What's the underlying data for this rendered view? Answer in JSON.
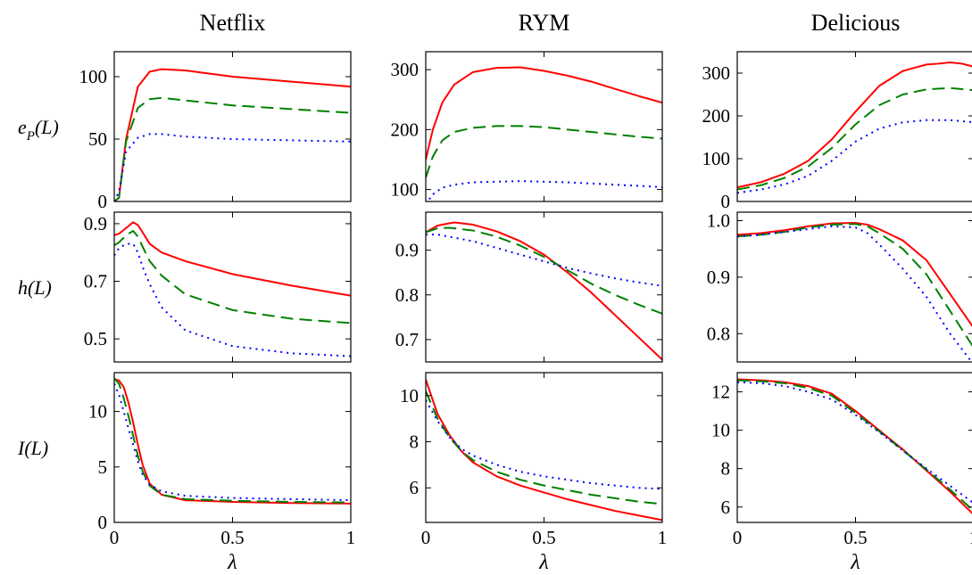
{
  "figure": {
    "columns": [
      "Netflix",
      "RYM",
      "Delicious"
    ],
    "row_labels": [
      {
        "base": "e",
        "sub": "P",
        "rest": "(L)"
      },
      {
        "base": "h(L)",
        "sub": "",
        "rest": ""
      },
      {
        "base": "I(L)",
        "sub": "",
        "rest": ""
      }
    ],
    "xlabel": "λ",
    "colors": {
      "red": "#ff0000",
      "green": "#008000",
      "blue": "#0000ff"
    }
  },
  "chart_data": [
    {
      "type": "line",
      "dataset": "Netflix",
      "metric": "eP(L)",
      "xlim": [
        0,
        1
      ],
      "ylim": [
        0,
        120
      ],
      "yticks": [
        0,
        50,
        100
      ],
      "ytick_labels": [
        "0",
        "50",
        "100"
      ],
      "xticks": [
        0,
        0.5,
        1
      ],
      "xtick_labels": [
        "",
        "",
        ""
      ],
      "series": [
        {
          "style": "solid",
          "color": "#ff0000",
          "x": [
            0,
            0.02,
            0.05,
            0.1,
            0.15,
            0.2,
            0.3,
            0.5,
            0.75,
            1
          ],
          "y": [
            0,
            3,
            50,
            92,
            104,
            106,
            105,
            100,
            96,
            92
          ]
        },
        {
          "style": "dashed",
          "color": "#008000",
          "x": [
            0,
            0.02,
            0.05,
            0.1,
            0.15,
            0.2,
            0.3,
            0.5,
            0.75,
            1
          ],
          "y": [
            0,
            3,
            48,
            75,
            82,
            83,
            81,
            77,
            74,
            71
          ]
        },
        {
          "style": "dotted",
          "color": "#0000ff",
          "x": [
            0,
            0.02,
            0.05,
            0.1,
            0.15,
            0.2,
            0.3,
            0.5,
            0.75,
            1
          ],
          "y": [
            0,
            8,
            40,
            51,
            54,
            54,
            52,
            50,
            49,
            48
          ]
        }
      ]
    },
    {
      "type": "line",
      "dataset": "RYM",
      "metric": "eP(L)",
      "xlim": [
        0,
        1
      ],
      "ylim": [
        80,
        330
      ],
      "yticks": [
        100,
        200,
        300
      ],
      "ytick_labels": [
        "100",
        "200",
        "300"
      ],
      "xticks": [
        0,
        0.5,
        1
      ],
      "xtick_labels": [
        "",
        "",
        ""
      ],
      "series": [
        {
          "style": "solid",
          "color": "#ff0000",
          "x": [
            0,
            0.03,
            0.07,
            0.12,
            0.2,
            0.3,
            0.4,
            0.5,
            0.6,
            0.7,
            0.8,
            0.9,
            1
          ],
          "y": [
            150,
            200,
            245,
            275,
            296,
            303,
            304,
            298,
            290,
            280,
            268,
            256,
            245
          ]
        },
        {
          "style": "dashed",
          "color": "#008000",
          "x": [
            0,
            0.03,
            0.07,
            0.12,
            0.2,
            0.3,
            0.4,
            0.5,
            0.6,
            0.7,
            0.8,
            0.9,
            1
          ],
          "y": [
            120,
            155,
            182,
            196,
            203,
            206,
            206,
            204,
            200,
            196,
            192,
            188,
            185
          ]
        },
        {
          "style": "dotted",
          "color": "#0000ff",
          "x": [
            0,
            0.03,
            0.07,
            0.12,
            0.2,
            0.3,
            0.4,
            0.5,
            0.6,
            0.7,
            0.8,
            0.9,
            1
          ],
          "y": [
            75,
            92,
            103,
            108,
            112,
            113,
            114,
            113,
            112,
            110,
            108,
            106,
            104
          ]
        }
      ]
    },
    {
      "type": "line",
      "dataset": "Delicious",
      "metric": "eP(L)",
      "xlim": [
        0,
        1
      ],
      "ylim": [
        0,
        350
      ],
      "yticks": [
        0,
        100,
        200,
        300
      ],
      "ytick_labels": [
        "0",
        "100",
        "200",
        "300"
      ],
      "xticks": [
        0,
        0.5,
        1
      ],
      "xtick_labels": [
        "",
        "",
        ""
      ],
      "series": [
        {
          "style": "solid",
          "color": "#ff0000",
          "x": [
            0,
            0.1,
            0.2,
            0.3,
            0.4,
            0.5,
            0.6,
            0.7,
            0.8,
            0.85,
            0.9,
            0.95,
            1
          ],
          "y": [
            33,
            45,
            65,
            95,
            145,
            210,
            270,
            305,
            320,
            322,
            325,
            322,
            315
          ]
        },
        {
          "style": "dashed",
          "color": "#008000",
          "x": [
            0,
            0.1,
            0.2,
            0.3,
            0.4,
            0.5,
            0.6,
            0.7,
            0.8,
            0.9,
            1
          ],
          "y": [
            28,
            38,
            55,
            82,
            125,
            180,
            225,
            250,
            262,
            265,
            260
          ]
        },
        {
          "style": "dotted",
          "color": "#0000ff",
          "x": [
            0,
            0.1,
            0.2,
            0.3,
            0.4,
            0.5,
            0.6,
            0.7,
            0.8,
            0.9,
            1
          ],
          "y": [
            20,
            28,
            40,
            60,
            95,
            140,
            170,
            185,
            190,
            190,
            185
          ]
        }
      ]
    },
    {
      "type": "line",
      "dataset": "Netflix",
      "metric": "h(L)",
      "xlim": [
        0,
        1
      ],
      "ylim": [
        0.42,
        0.94
      ],
      "yticks": [
        0.5,
        0.7,
        0.9
      ],
      "ytick_labels": [
        "0.5",
        "0.7",
        "0.9"
      ],
      "xticks": [
        0,
        0.5,
        1
      ],
      "xtick_labels": [
        "",
        "",
        ""
      ],
      "series": [
        {
          "style": "solid",
          "color": "#ff0000",
          "x": [
            0,
            0.02,
            0.05,
            0.08,
            0.1,
            0.12,
            0.15,
            0.2,
            0.3,
            0.5,
            0.75,
            1
          ],
          "y": [
            0.86,
            0.865,
            0.885,
            0.905,
            0.895,
            0.87,
            0.83,
            0.8,
            0.77,
            0.725,
            0.685,
            0.65
          ]
        },
        {
          "style": "dashed",
          "color": "#008000",
          "x": [
            0,
            0.02,
            0.05,
            0.08,
            0.1,
            0.12,
            0.15,
            0.2,
            0.3,
            0.5,
            0.75,
            1
          ],
          "y": [
            0.825,
            0.835,
            0.86,
            0.875,
            0.855,
            0.82,
            0.77,
            0.72,
            0.655,
            0.6,
            0.57,
            0.555
          ]
        },
        {
          "style": "dotted",
          "color": "#0000ff",
          "x": [
            0,
            0.02,
            0.05,
            0.08,
            0.1,
            0.12,
            0.15,
            0.2,
            0.3,
            0.5,
            0.75,
            1
          ],
          "y": [
            0.79,
            0.815,
            0.83,
            0.83,
            0.8,
            0.75,
            0.69,
            0.61,
            0.53,
            0.475,
            0.45,
            0.44
          ]
        }
      ]
    },
    {
      "type": "line",
      "dataset": "RYM",
      "metric": "h(L)",
      "xlim": [
        0,
        1
      ],
      "ylim": [
        0.65,
        0.985
      ],
      "yticks": [
        0.7,
        0.8,
        0.9
      ],
      "ytick_labels": [
        "0.7",
        "0.8",
        "0.9"
      ],
      "xticks": [
        0,
        0.5,
        1
      ],
      "xtick_labels": [
        "",
        "",
        ""
      ],
      "series": [
        {
          "style": "solid",
          "color": "#ff0000",
          "x": [
            0,
            0.05,
            0.12,
            0.2,
            0.3,
            0.4,
            0.5,
            0.6,
            0.7,
            0.8,
            0.9,
            1
          ],
          "y": [
            0.94,
            0.955,
            0.962,
            0.957,
            0.942,
            0.92,
            0.89,
            0.85,
            0.805,
            0.755,
            0.705,
            0.655
          ]
        },
        {
          "style": "dashed",
          "color": "#008000",
          "x": [
            0,
            0.05,
            0.1,
            0.2,
            0.3,
            0.4,
            0.5,
            0.6,
            0.7,
            0.8,
            0.9,
            1
          ],
          "y": [
            0.94,
            0.949,
            0.95,
            0.944,
            0.93,
            0.91,
            0.885,
            0.855,
            0.825,
            0.8,
            0.778,
            0.758
          ]
        },
        {
          "style": "dotted",
          "color": "#0000ff",
          "x": [
            0,
            0.05,
            0.1,
            0.2,
            0.3,
            0.4,
            0.5,
            0.6,
            0.7,
            0.8,
            0.9,
            1
          ],
          "y": [
            0.935,
            0.935,
            0.93,
            0.92,
            0.905,
            0.89,
            0.875,
            0.86,
            0.848,
            0.837,
            0.828,
            0.82
          ]
        }
      ]
    },
    {
      "type": "line",
      "dataset": "Delicious",
      "metric": "h(L)",
      "xlim": [
        0,
        1
      ],
      "ylim": [
        0.75,
        1.015
      ],
      "yticks": [
        0.8,
        0.9,
        1.0
      ],
      "ytick_labels": [
        "0.8",
        "0.9",
        "1.0"
      ],
      "xticks": [
        0,
        0.5,
        1
      ],
      "xtick_labels": [
        "",
        "",
        ""
      ],
      "series": [
        {
          "style": "solid",
          "color": "#ff0000",
          "x": [
            0,
            0.1,
            0.2,
            0.3,
            0.4,
            0.5,
            0.55,
            0.6,
            0.7,
            0.8,
            0.9,
            1
          ],
          "y": [
            0.975,
            0.978,
            0.983,
            0.99,
            0.995,
            0.996,
            0.993,
            0.985,
            0.965,
            0.93,
            0.87,
            0.81
          ]
        },
        {
          "style": "dashed",
          "color": "#008000",
          "x": [
            0,
            0.1,
            0.2,
            0.3,
            0.4,
            0.5,
            0.55,
            0.6,
            0.7,
            0.8,
            0.9,
            1
          ],
          "y": [
            0.972,
            0.975,
            0.98,
            0.988,
            0.993,
            0.994,
            0.99,
            0.978,
            0.95,
            0.905,
            0.84,
            0.775
          ]
        },
        {
          "style": "dotted",
          "color": "#0000ff",
          "x": [
            0,
            0.1,
            0.2,
            0.3,
            0.4,
            0.5,
            0.55,
            0.6,
            0.7,
            0.8,
            0.9,
            1
          ],
          "y": [
            0.972,
            0.975,
            0.98,
            0.985,
            0.99,
            0.988,
            0.978,
            0.958,
            0.915,
            0.865,
            0.8,
            0.745
          ]
        }
      ]
    },
    {
      "type": "line",
      "dataset": "Netflix",
      "metric": "I(L)",
      "xlim": [
        0,
        1
      ],
      "ylim": [
        0,
        13.5
      ],
      "yticks": [
        0,
        5,
        10
      ],
      "ytick_labels": [
        "0",
        "5",
        "10"
      ],
      "xticks": [
        0,
        0.5,
        1
      ],
      "xtick_labels": [
        "0",
        "0.5",
        "1"
      ],
      "series": [
        {
          "style": "solid",
          "color": "#ff0000",
          "x": [
            0,
            0.02,
            0.04,
            0.06,
            0.08,
            0.1,
            0.12,
            0.15,
            0.2,
            0.3,
            0.5,
            0.75,
            1
          ],
          "y": [
            12.9,
            12.8,
            12.2,
            10.8,
            9,
            7,
            5.2,
            3.5,
            2.5,
            2,
            1.85,
            1.75,
            1.7
          ]
        },
        {
          "style": "dashed",
          "color": "#008000",
          "x": [
            0,
            0.02,
            0.04,
            0.06,
            0.08,
            0.1,
            0.12,
            0.15,
            0.2,
            0.3,
            0.5,
            0.75,
            1
          ],
          "y": [
            13,
            12.5,
            11.2,
            9.6,
            7.8,
            6,
            4.6,
            3.3,
            2.5,
            2.1,
            1.95,
            1.85,
            1.8
          ]
        },
        {
          "style": "dotted",
          "color": "#0000ff",
          "x": [
            0,
            0.02,
            0.04,
            0.06,
            0.08,
            0.1,
            0.12,
            0.15,
            0.2,
            0.3,
            0.5,
            0.75,
            1
          ],
          "y": [
            12.5,
            11.5,
            10,
            8.5,
            7,
            5.5,
            4.3,
            3.4,
            2.8,
            2.4,
            2.2,
            2.1,
            2
          ]
        }
      ]
    },
    {
      "type": "line",
      "dataset": "RYM",
      "metric": "I(L)",
      "xlim": [
        0,
        1
      ],
      "ylim": [
        4.5,
        11
      ],
      "yticks": [
        6,
        8,
        10
      ],
      "ytick_labels": [
        "6",
        "8",
        "10"
      ],
      "xticks": [
        0,
        0.5,
        1
      ],
      "xtick_labels": [
        "0",
        "0.5",
        "1"
      ],
      "series": [
        {
          "style": "solid",
          "color": "#ff0000",
          "x": [
            0,
            0.05,
            0.1,
            0.15,
            0.2,
            0.3,
            0.4,
            0.5,
            0.6,
            0.7,
            0.8,
            0.9,
            1
          ],
          "y": [
            10.7,
            9.2,
            8.3,
            7.6,
            7.1,
            6.5,
            6.1,
            5.8,
            5.5,
            5.25,
            5,
            4.8,
            4.6
          ]
        },
        {
          "style": "dashed",
          "color": "#008000",
          "x": [
            0,
            0.05,
            0.1,
            0.15,
            0.2,
            0.3,
            0.4,
            0.5,
            0.6,
            0.7,
            0.8,
            0.9,
            1
          ],
          "y": [
            10.2,
            9,
            8.2,
            7.6,
            7.2,
            6.7,
            6.35,
            6.1,
            5.9,
            5.7,
            5.55,
            5.4,
            5.3
          ]
        },
        {
          "style": "dotted",
          "color": "#0000ff",
          "x": [
            0,
            0.05,
            0.1,
            0.15,
            0.2,
            0.3,
            0.4,
            0.5,
            0.6,
            0.7,
            0.8,
            0.9,
            1
          ],
          "y": [
            9.8,
            8.9,
            8.2,
            7.7,
            7.4,
            7,
            6.7,
            6.5,
            6.35,
            6.2,
            6.1,
            6,
            5.95
          ]
        }
      ]
    },
    {
      "type": "line",
      "dataset": "Delicious",
      "metric": "I(L)",
      "xlim": [
        0,
        1
      ],
      "ylim": [
        5.2,
        13
      ],
      "yticks": [
        6,
        8,
        10,
        12
      ],
      "ytick_labels": [
        "6",
        "8",
        "10",
        "12"
      ],
      "xticks": [
        0,
        0.5,
        1
      ],
      "xtick_labels": [
        "0",
        "0.5",
        "1"
      ],
      "series": [
        {
          "style": "solid",
          "color": "#ff0000",
          "x": [
            0,
            0.1,
            0.2,
            0.3,
            0.4,
            0.5,
            0.6,
            0.7,
            0.8,
            0.9,
            1
          ],
          "y": [
            12.65,
            12.6,
            12.5,
            12.3,
            11.9,
            11,
            10,
            9,
            7.9,
            6.8,
            5.6
          ]
        },
        {
          "style": "dashed",
          "color": "#008000",
          "x": [
            0,
            0.1,
            0.2,
            0.3,
            0.4,
            0.5,
            0.6,
            0.7,
            0.8,
            0.9,
            1
          ],
          "y": [
            12.6,
            12.55,
            12.45,
            12.2,
            11.8,
            10.9,
            9.95,
            8.95,
            7.95,
            6.9,
            5.8
          ]
        },
        {
          "style": "dotted",
          "color": "#0000ff",
          "x": [
            0,
            0.1,
            0.2,
            0.3,
            0.4,
            0.5,
            0.6,
            0.7,
            0.8,
            0.9,
            1
          ],
          "y": [
            12.5,
            12.45,
            12.3,
            12,
            11.6,
            10.8,
            9.9,
            8.95,
            8,
            7.1,
            6.2
          ]
        }
      ]
    }
  ]
}
